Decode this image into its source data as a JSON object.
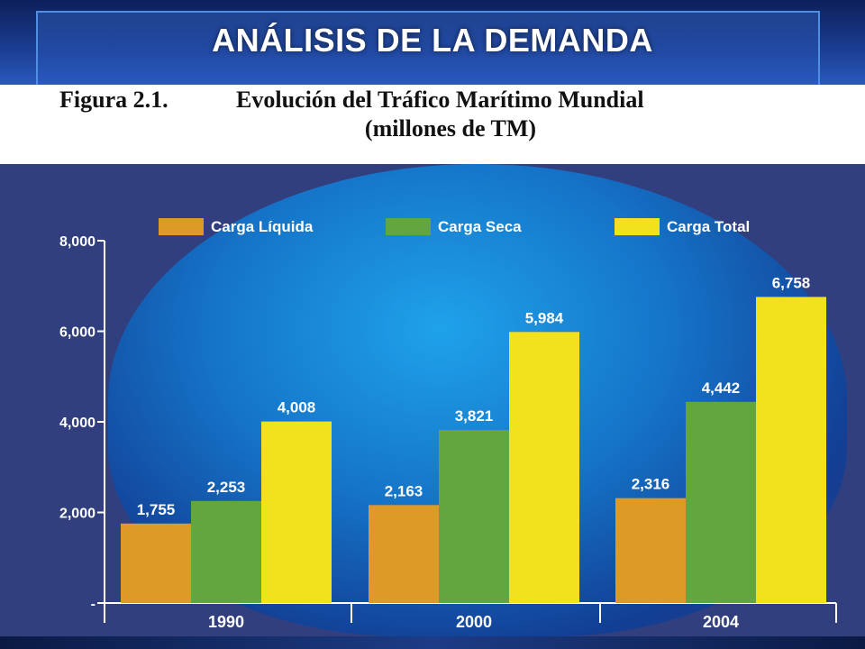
{
  "slide": {
    "title": "ANÁLISIS DE LA DEMANDA"
  },
  "figure": {
    "label": "Figura 2.1.",
    "title": "Evolución del Tráfico Marítimo Mundial",
    "subtitle": "(millones de TM)"
  },
  "chart_data": {
    "type": "bar",
    "categories": [
      "1990",
      "2000",
      "2004"
    ],
    "series": [
      {
        "name": "Carga Líquida",
        "color": "#dd9a27",
        "values": [
          1755,
          2163,
          2316
        ],
        "labels": [
          "1,755",
          "2,163",
          "2,316"
        ]
      },
      {
        "name": "Carga Seca",
        "color": "#63a63f",
        "values": [
          2253,
          3821,
          4442
        ],
        "labels": [
          "2,253",
          "3,821",
          "4,442"
        ]
      },
      {
        "name": "Carga Total",
        "color": "#f2e21e",
        "values": [
          4008,
          5984,
          6758
        ],
        "labels": [
          "4,008",
          "5,984",
          "6,758"
        ]
      }
    ],
    "ylim": [
      0,
      8000
    ],
    "yticks": [
      0,
      2000,
      4000,
      6000,
      8000
    ],
    "ytick_labels": [
      "-",
      "2,000",
      "4,000",
      "6,000",
      "8,000"
    ],
    "legend_position": "top",
    "grid": false
  }
}
